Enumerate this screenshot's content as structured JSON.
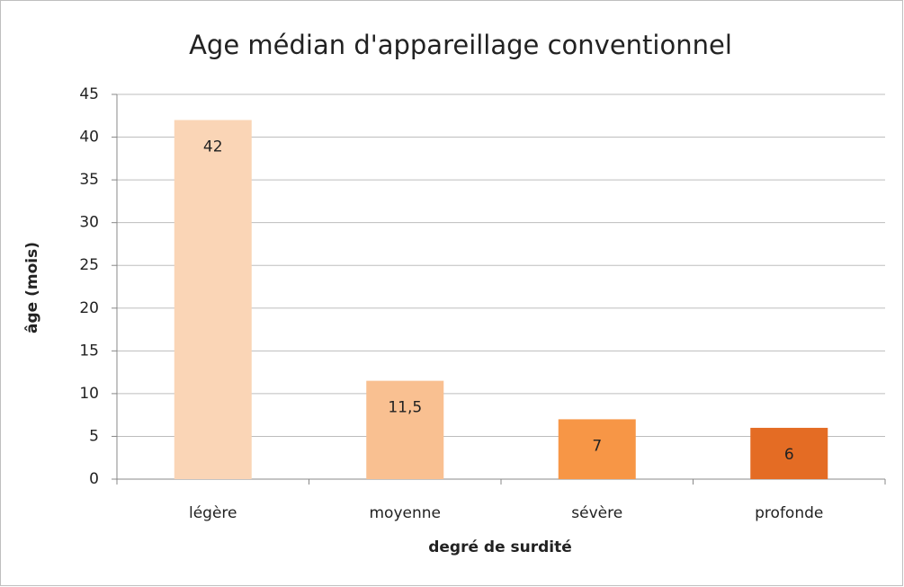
{
  "chart_data": {
    "type": "bar",
    "title": "Age médian d'appareillage conventionnel",
    "x_label": "degré de surdité",
    "y_label": "âge (mois)",
    "categories": [
      "légère",
      "moyenne",
      "sévère",
      "profonde"
    ],
    "values": [
      42,
      11.5,
      7,
      6
    ],
    "value_labels": [
      "42",
      "11,5",
      "7",
      "6"
    ],
    "colors": [
      "#fad5b6",
      "#f9c091",
      "#f79646",
      "#e46c24"
    ],
    "ylim": [
      0,
      45
    ],
    "yticks": [
      0,
      5,
      10,
      15,
      20,
      25,
      30,
      35,
      40,
      45
    ],
    "grid": true
  }
}
